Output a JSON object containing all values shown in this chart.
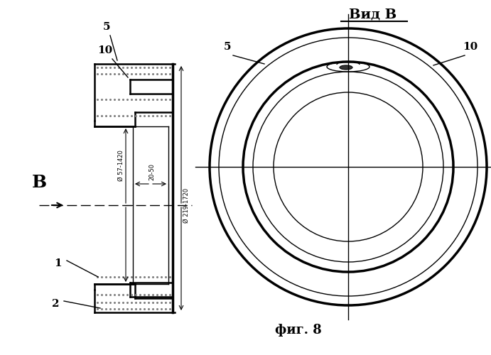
{
  "bg_color": "#ffffff",
  "fig_caption": "фиг. 8",
  "view_label": "Вид В",
  "left_label_B": "В",
  "label_1": "1",
  "label_2": "2",
  "label_5_left": "5",
  "label_10_left": "10",
  "label_5_right": "5",
  "label_10_right": "10",
  "dim_d1": "Ø 57-1420",
  "dim_width": "20-50",
  "dim_d2": "Ø 219-1720",
  "line_color": "#000000"
}
